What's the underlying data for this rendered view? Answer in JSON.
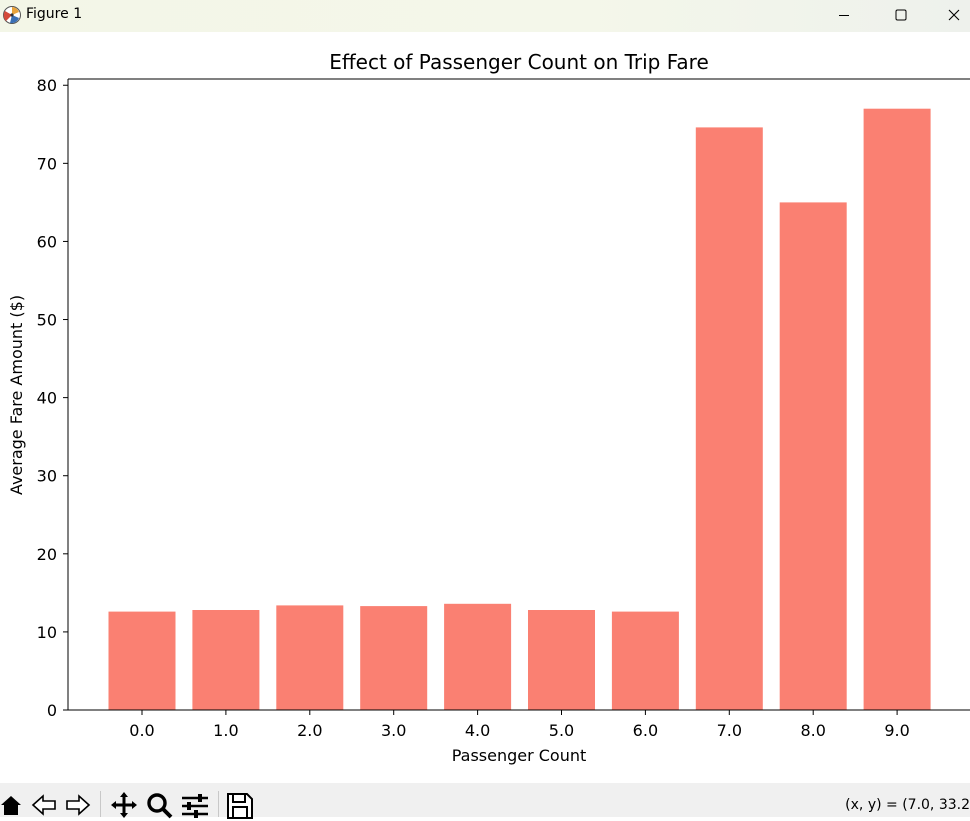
{
  "window": {
    "title": "Figure 1",
    "icon": "matplotlib-icon"
  },
  "toolbar": {
    "coords": "(x, y) = (7.0, 33.2",
    "buttons": [
      "home-icon",
      "back-icon",
      "forward-icon",
      "pan-icon",
      "zoom-icon",
      "configure-icon",
      "save-icon"
    ]
  },
  "colors": {
    "bar": "#fa8072",
    "axis": "#000000",
    "titlebar": "#f3f6e7",
    "toolbar": "#f0f0f0"
  },
  "chart_data": {
    "type": "bar",
    "title": "Effect of Passenger Count on Trip Fare",
    "xlabel": "Passenger Count",
    "ylabel": "Average Fare Amount ($)",
    "categories": [
      "0.0",
      "1.0",
      "2.0",
      "3.0",
      "4.0",
      "5.0",
      "6.0",
      "7.0",
      "8.0",
      "9.0"
    ],
    "values": [
      12.6,
      12.8,
      13.4,
      13.3,
      13.6,
      12.8,
      12.6,
      74.6,
      65.0,
      77.0
    ],
    "ylim": [
      0,
      80.8
    ],
    "yticks": [
      "0",
      "10",
      "20",
      "30",
      "40",
      "50",
      "60",
      "70",
      "80"
    ],
    "grid": false,
    "legend": "none"
  }
}
